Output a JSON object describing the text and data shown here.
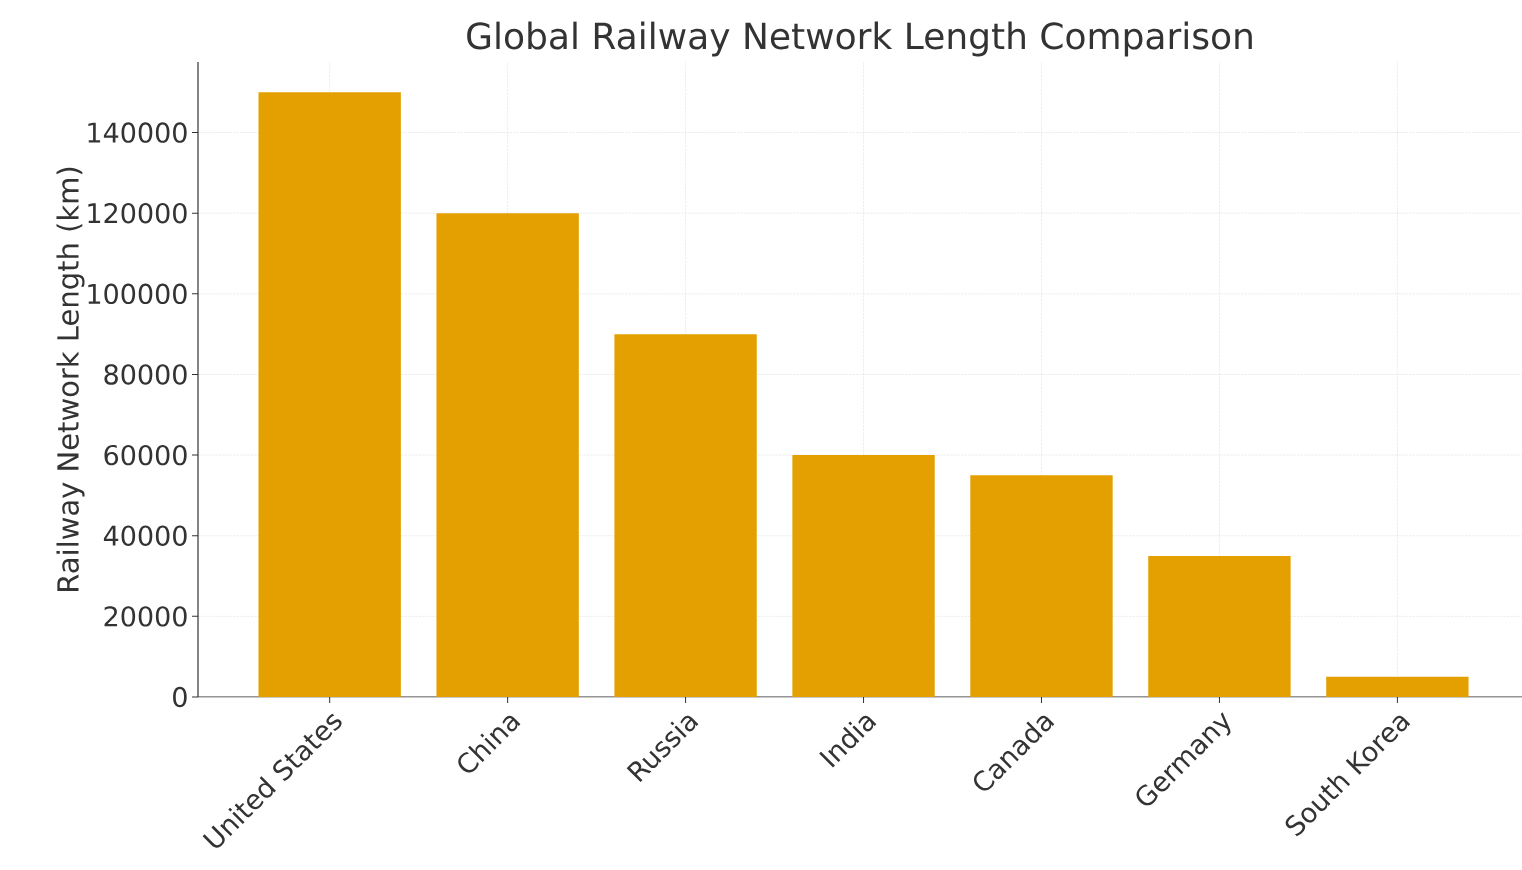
{
  "chart_data": {
    "type": "bar",
    "title": "Global Railway Network Length Comparison",
    "ylabel": "Railway Network Length (km)",
    "categories": [
      "United States",
      "China",
      "Russia",
      "India",
      "Canada",
      "Germany",
      "South Korea"
    ],
    "values": [
      150000,
      120000,
      90000,
      60000,
      55000,
      35000,
      5000
    ],
    "color": "#e3a000",
    "ylim": [
      0,
      157500
    ],
    "yticks": [
      0,
      20000,
      40000,
      60000,
      80000,
      100000,
      120000,
      140000
    ],
    "grid": true
  }
}
